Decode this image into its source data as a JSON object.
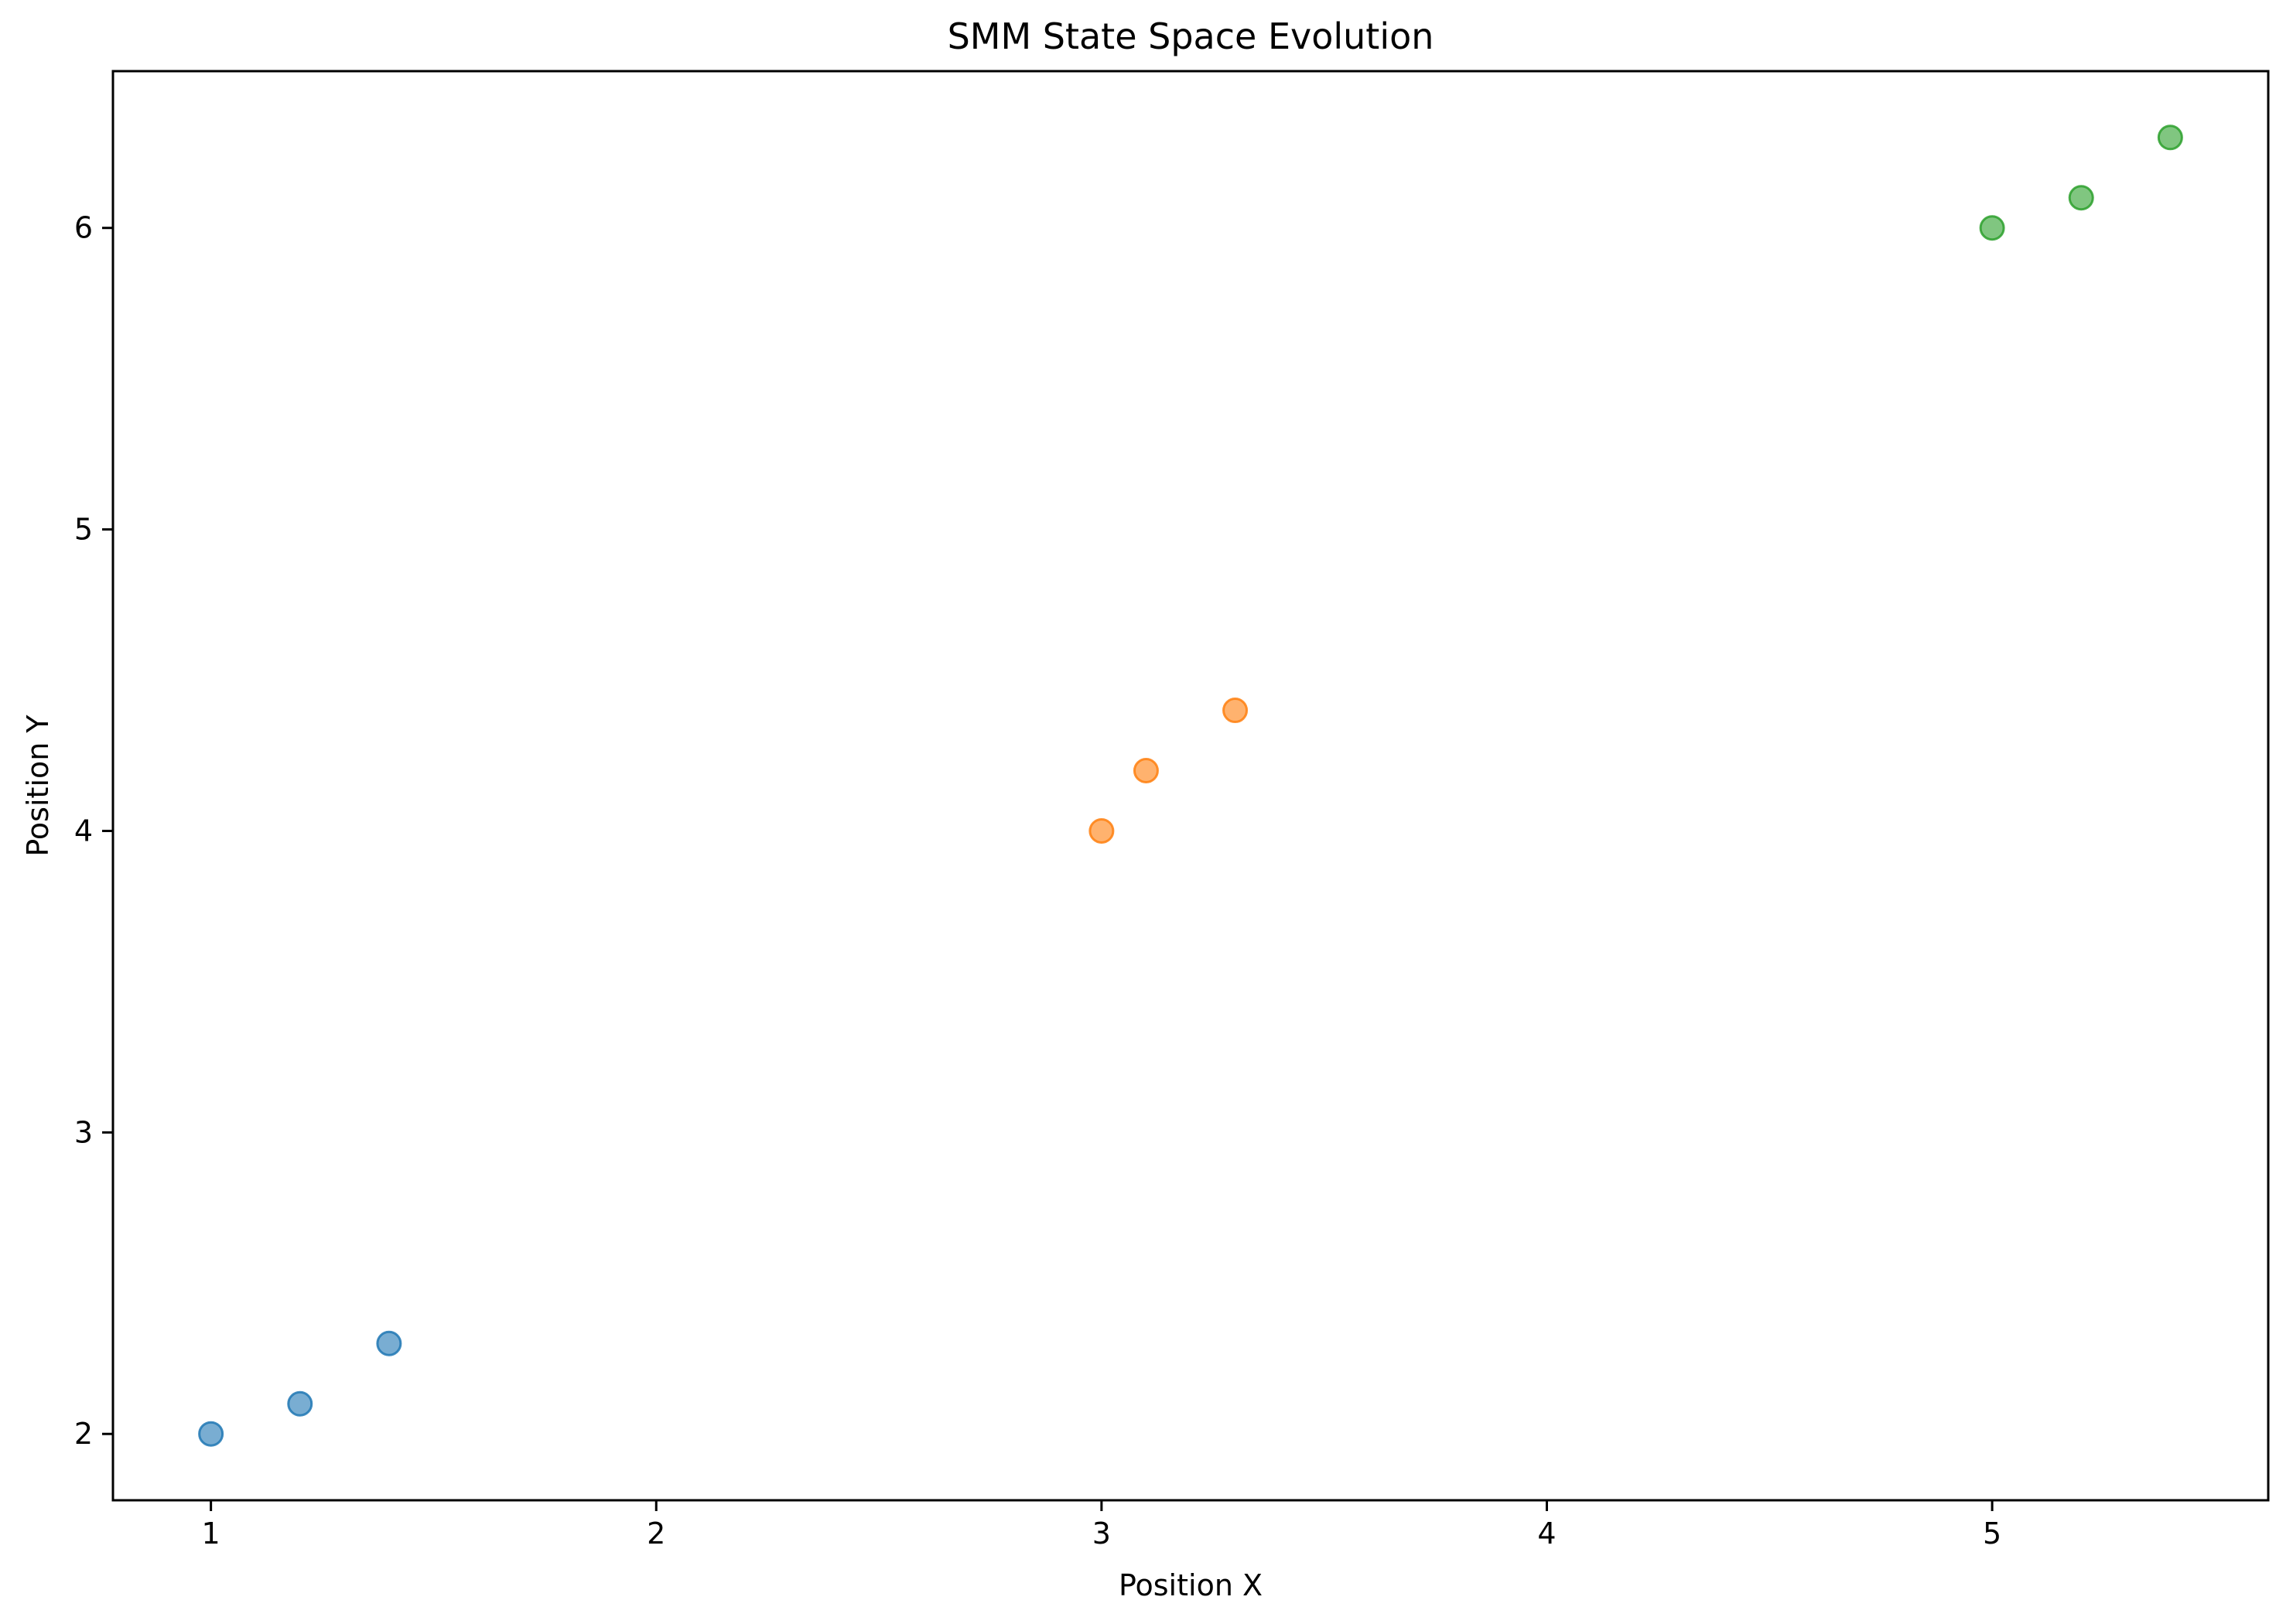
{
  "chart_data": {
    "type": "scatter",
    "title": "SMM State Space Evolution",
    "xlabel": "Position X",
    "ylabel": "Position Y",
    "xlim": [
      0.78,
      5.62
    ],
    "ylim": [
      1.78,
      6.52
    ],
    "xticks": [
      1,
      2,
      3,
      4,
      5
    ],
    "yticks": [
      2,
      3,
      4,
      5,
      6
    ],
    "grid": false,
    "legend": "none",
    "series": [
      {
        "color": "#1f77b4",
        "opacity": 0.6,
        "points": [
          [
            1.0,
            2.0
          ],
          [
            1.2,
            2.1
          ],
          [
            1.4,
            2.3
          ]
        ]
      },
      {
        "color": "#ff7f0e",
        "opacity": 0.6,
        "points": [
          [
            3.0,
            4.0
          ],
          [
            3.1,
            4.2
          ],
          [
            3.3,
            4.4
          ]
        ]
      },
      {
        "color": "#2ca02c",
        "opacity": 0.6,
        "points": [
          [
            5.0,
            6.0
          ],
          [
            5.2,
            6.1
          ],
          [
            5.4,
            6.3
          ]
        ]
      }
    ]
  }
}
